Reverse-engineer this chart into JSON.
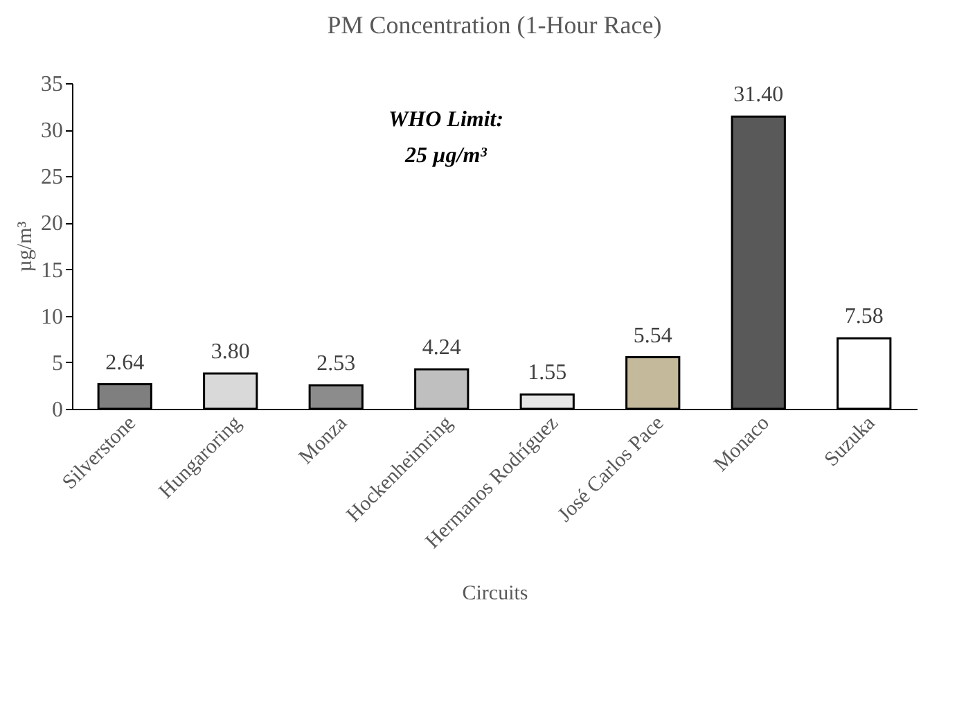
{
  "chart_data": {
    "type": "bar",
    "title": "PM Concentration (1-Hour Race)",
    "xlabel": "Circuits",
    "ylabel": "µg/m³",
    "categories": [
      "Silverstone",
      "Hungaroring",
      "Monza",
      "Hockenheimring",
      "Hermanos Rodríguez",
      "José Carlos Pace",
      "Monaco",
      "Suzuka"
    ],
    "values": [
      2.64,
      3.8,
      2.53,
      4.24,
      1.55,
      5.54,
      31.4,
      7.58
    ],
    "value_labels": [
      "2.64",
      "3.80",
      "2.53",
      "4.24",
      "1.55",
      "5.54",
      "31.40",
      "7.58"
    ],
    "colors": [
      "#7f7f7f",
      "#d9d9d9",
      "#8c8c8c",
      "#bfbfbf",
      "#e6e6e6",
      "#c4b99a",
      "#595959",
      "#ffffff"
    ],
    "ylim": [
      0,
      35
    ],
    "yticks": [
      0,
      5,
      10,
      15,
      20,
      25,
      30,
      35
    ],
    "grid": false,
    "legend": false,
    "annotations": [
      "WHO Limit:\n25 µg/m³"
    ]
  }
}
